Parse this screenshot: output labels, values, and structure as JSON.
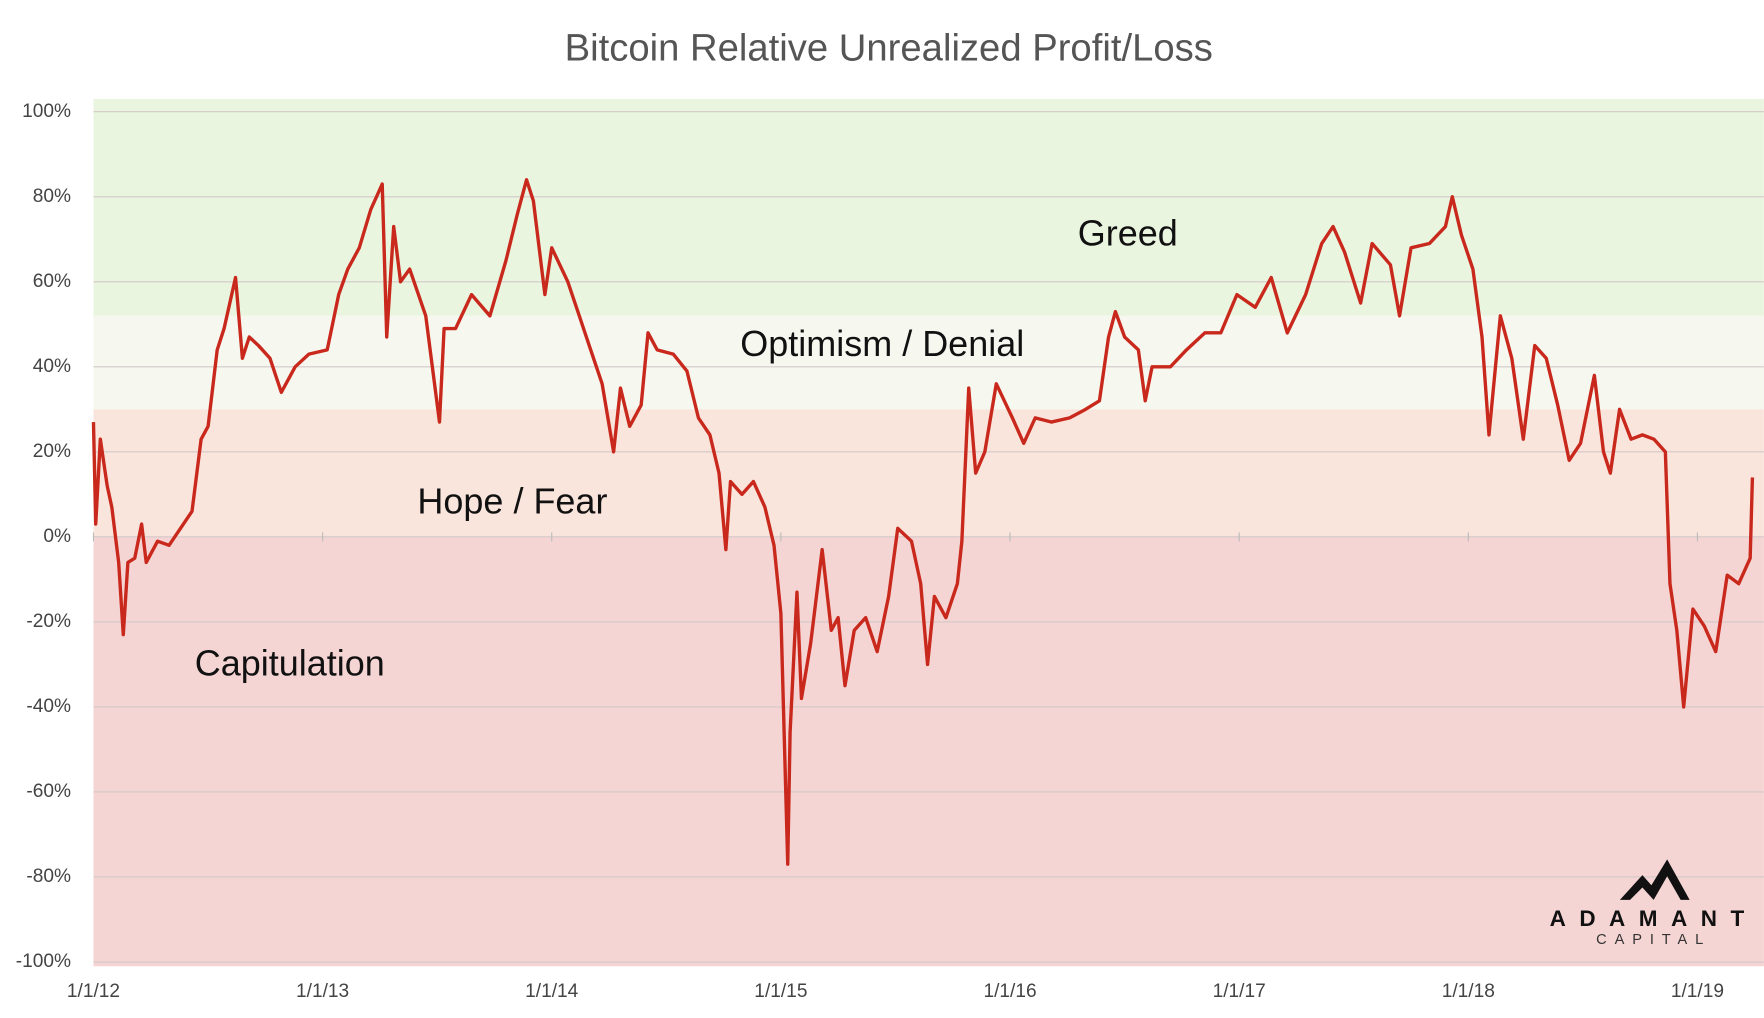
{
  "chart_data": {
    "type": "line",
    "title": "Bitcoin Relative Unrealized Profit/Loss",
    "logo": {
      "name": "ADAMANT",
      "subtitle": "CAPITAL"
    },
    "xlim": [
      2012,
      2019.29
    ],
    "xticks": [
      {
        "value": 2012,
        "label": "1/1/12"
      },
      {
        "value": 2013,
        "label": "1/1/13"
      },
      {
        "value": 2014,
        "label": "1/1/14"
      },
      {
        "value": 2015,
        "label": "1/1/15"
      },
      {
        "value": 2016,
        "label": "1/1/16"
      },
      {
        "value": 2017,
        "label": "1/1/17"
      },
      {
        "value": 2018,
        "label": "1/1/18"
      },
      {
        "value": 2019,
        "label": "1/1/19"
      }
    ],
    "ylim": [
      -101,
      103
    ],
    "yticks": [
      {
        "value": 100,
        "label": "100%"
      },
      {
        "value": 80,
        "label": "80%"
      },
      {
        "value": 60,
        "label": "60%"
      },
      {
        "value": 40,
        "label": "40%"
      },
      {
        "value": 20,
        "label": "20%"
      },
      {
        "value": 0,
        "label": "0%"
      },
      {
        "value": -20,
        "label": "-20%"
      },
      {
        "value": -40,
        "label": "-40%"
      },
      {
        "value": -60,
        "label": "-60%"
      },
      {
        "value": -80,
        "label": "-80%"
      },
      {
        "value": -100,
        "label": "-100%"
      }
    ],
    "grid": true,
    "zones": [
      {
        "name": "Greed",
        "from": 52,
        "to": 103,
        "color": "#eaf5e0"
      },
      {
        "name": "Optimism / Denial",
        "from": 30,
        "to": 52,
        "color": "#f6f8f0"
      },
      {
        "name": "Hope / Fear",
        "from": 0,
        "to": 30,
        "color": "#fae5dc"
      },
      {
        "name": "Capitulation",
        "from": -101,
        "to": 0,
        "color": "#f5d5d4"
      }
    ],
    "series": [
      {
        "name": "Relative Unrealized Profit/Loss",
        "color": "#c9281c",
        "x": [
          2012.0,
          2012.01,
          2012.03,
          2012.06,
          2012.08,
          2012.11,
          2012.13,
          2012.15,
          2012.18,
          2012.21,
          2012.23,
          2012.28,
          2012.33,
          2012.38,
          2012.43,
          2012.47,
          2012.5,
          2012.54,
          2012.57,
          2012.62,
          2012.65,
          2012.68,
          2012.72,
          2012.77,
          2012.82,
          2012.88,
          2012.94,
          2013.02,
          2013.07,
          2013.11,
          2013.16,
          2013.21,
          2013.26,
          2013.28,
          2013.31,
          2013.34,
          2013.38,
          2013.45,
          2013.51,
          2013.53,
          2013.58,
          2013.65,
          2013.73,
          2013.8,
          2013.85,
          2013.89,
          2013.92,
          2013.97,
          2014.0,
          2014.07,
          2014.12,
          2014.17,
          2014.22,
          2014.27,
          2014.3,
          2014.34,
          2014.39,
          2014.42,
          2014.46,
          2014.53,
          2014.59,
          2014.64,
          2014.69,
          2014.73,
          2014.76,
          2014.78,
          2014.83,
          2014.88,
          2014.93,
          2014.97,
          2015.0,
          2015.03,
          2015.04,
          2015.07,
          2015.09,
          2015.13,
          2015.18,
          2015.22,
          2015.25,
          2015.28,
          2015.32,
          2015.37,
          2015.42,
          2015.47,
          2015.51,
          2015.57,
          2015.61,
          2015.64,
          2015.67,
          2015.72,
          2015.77,
          2015.79,
          2015.82,
          2015.85,
          2015.89,
          2015.94,
          2016.01,
          2016.06,
          2016.11,
          2016.18,
          2016.26,
          2016.33,
          2016.39,
          2016.43,
          2016.46,
          2016.5,
          2016.56,
          2016.59,
          2016.62,
          2016.7,
          2016.77,
          2016.85,
          2016.92,
          2016.99,
          2017.07,
          2017.14,
          2017.21,
          2017.29,
          2017.36,
          2017.41,
          2017.46,
          2017.53,
          2017.58,
          2017.66,
          2017.7,
          2017.75,
          2017.83,
          2017.9,
          2017.93,
          2017.97,
          2018.02,
          2018.06,
          2018.09,
          2018.14,
          2018.19,
          2018.24,
          2018.29,
          2018.34,
          2018.39,
          2018.44,
          2018.49,
          2018.55,
          2018.59,
          2018.62,
          2018.66,
          2018.71,
          2018.76,
          2018.81,
          2018.86,
          2018.88,
          2018.91,
          2018.94,
          2018.98,
          2019.03,
          2019.08,
          2019.13,
          2019.18,
          2019.23,
          2019.24
        ],
        "values": [
          27,
          3,
          23,
          12,
          7,
          -6,
          -23,
          -6,
          -5,
          3,
          -6,
          -1,
          -2,
          2,
          6,
          23,
          26,
          44,
          49,
          61,
          42,
          47,
          45,
          42,
          34,
          40,
          43,
          44,
          57,
          63,
          68,
          77,
          83,
          47,
          73,
          60,
          63,
          52,
          27,
          49,
          49,
          57,
          52,
          65,
          76,
          84,
          79,
          57,
          68,
          60,
          52,
          44,
          36,
          20,
          35,
          26,
          31,
          48,
          44,
          43,
          39,
          28,
          24,
          15,
          -3,
          13,
          10,
          13,
          7,
          -2,
          -18,
          -77,
          -46,
          -13,
          -38,
          -25,
          -3,
          -22,
          -19,
          -35,
          -22,
          -19,
          -27,
          -14,
          2,
          -1,
          -11,
          -30,
          -14,
          -19,
          -11,
          -1,
          35,
          15,
          20,
          36,
          28,
          22,
          28,
          27,
          28,
          30,
          32,
          47,
          53,
          47,
          44,
          32,
          40,
          40,
          44,
          48,
          48,
          57,
          54,
          61,
          48,
          57,
          69,
          73,
          67,
          55,
          69,
          64,
          52,
          68,
          69,
          73,
          80,
          71,
          63,
          47,
          24,
          52,
          42,
          23,
          45,
          42,
          31,
          18,
          22,
          38,
          20,
          15,
          30,
          23,
          24,
          23,
          20,
          -11,
          -22,
          -40,
          -17,
          -21,
          -27,
          -9,
          -11,
          -5,
          14
        ]
      }
    ]
  }
}
